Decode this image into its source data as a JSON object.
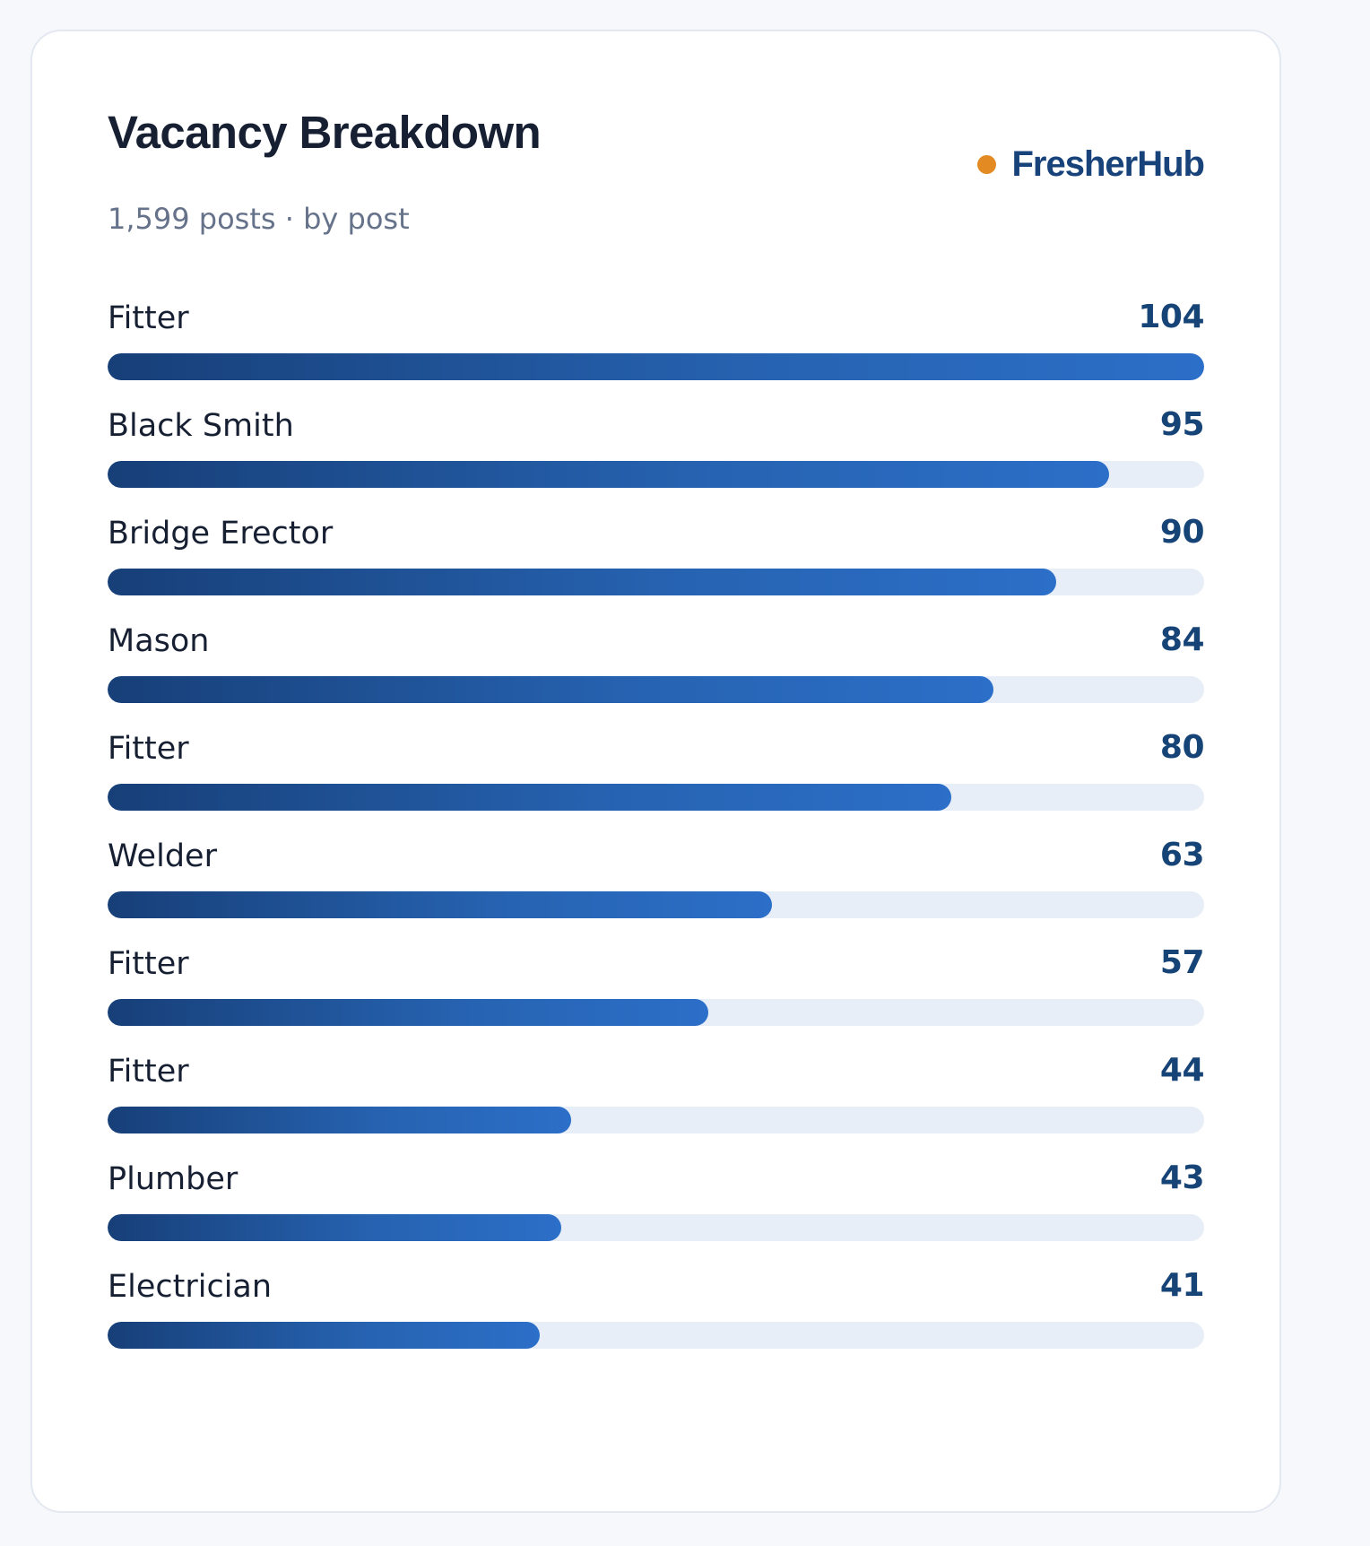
{
  "card": {
    "title": "Vacancy Breakdown",
    "subtitle": "1,599 posts · by post",
    "brand": "FresherHub"
  },
  "colors": {
    "brand_dot": "#e38b22",
    "brand_text": "#17427a",
    "bar_start": "#173f78",
    "bar_end": "#2c6fc8",
    "track": "#e8eef8"
  },
  "chart_data": {
    "type": "bar",
    "orientation": "horizontal",
    "title": "Vacancy Breakdown",
    "subtitle": "1,599 posts · by post",
    "categories": [
      "Fitter",
      "Black Smith",
      "Bridge Erector",
      "Mason",
      "Fitter",
      "Welder",
      "Fitter",
      "Fitter",
      "Plumber",
      "Electrician"
    ],
    "values": [
      104,
      95,
      90,
      84,
      80,
      63,
      57,
      44,
      43,
      41
    ],
    "value_labels": [
      "104",
      "95",
      "90",
      "84",
      "80",
      "63",
      "57",
      "44",
      "43",
      "41"
    ],
    "xlim": [
      0,
      104
    ],
    "grid": false,
    "legend": "none"
  }
}
